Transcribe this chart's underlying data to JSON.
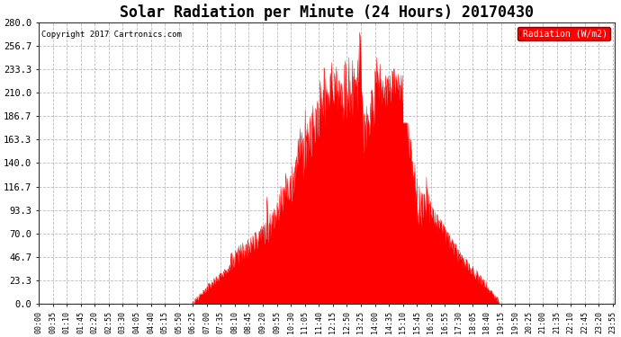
{
  "title": "Solar Radiation per Minute (24 Hours) 20170430",
  "copyright": "Copyright 2017 Cartronics.com",
  "legend_label": "Radiation (W/m2)",
  "background_color": "#ffffff",
  "plot_bg_color": "#ffffff",
  "grid_color": "#aaaaaa",
  "fill_color": "#ff0000",
  "line_color": "#ff0000",
  "dashed_line_color": "#ff0000",
  "ylim": [
    0.0,
    280.0
  ],
  "yticks": [
    0.0,
    23.3,
    46.7,
    70.0,
    93.3,
    116.7,
    140.0,
    163.3,
    186.7,
    210.0,
    233.3,
    256.7,
    280.0
  ],
  "xlabel_fontsize": 6.0,
  "ylabel_fontsize": 7.5,
  "title_fontsize": 12,
  "total_minutes": 1440,
  "tick_interval": 35
}
